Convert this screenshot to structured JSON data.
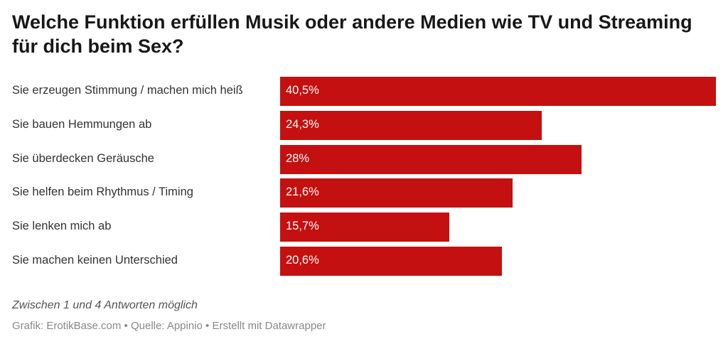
{
  "chart_data": {
    "type": "bar",
    "orientation": "horizontal",
    "title": "Welche Funktion erfüllen Musik oder andere Medien wie TV und Streaming für dich beim Sex?",
    "categories": [
      "Sie erzeugen Stimmung / machen mich heiß",
      "Sie bauen Hemmungen ab",
      "Sie überdecken Geräusche",
      "Sie helfen beim Rhythmus / Timing",
      "Sie lenken mich ab",
      "Sie machen keinen Unterschied"
    ],
    "values": [
      40.5,
      24.3,
      28,
      21.6,
      15.7,
      20.6
    ],
    "value_labels": [
      "40,5%",
      "24,3%",
      "28%",
      "21,6%",
      "15,7%",
      "20,6%"
    ],
    "unit": "%",
    "bar_color": "#c41010",
    "xlim": [
      0,
      40.5
    ],
    "grid": false
  },
  "notes": "Zwischen 1 und 4 Antworten möglich",
  "source": "Grafik: ErotikBase.com • Quelle: Appinio • Erstellt mit Datawrapper"
}
